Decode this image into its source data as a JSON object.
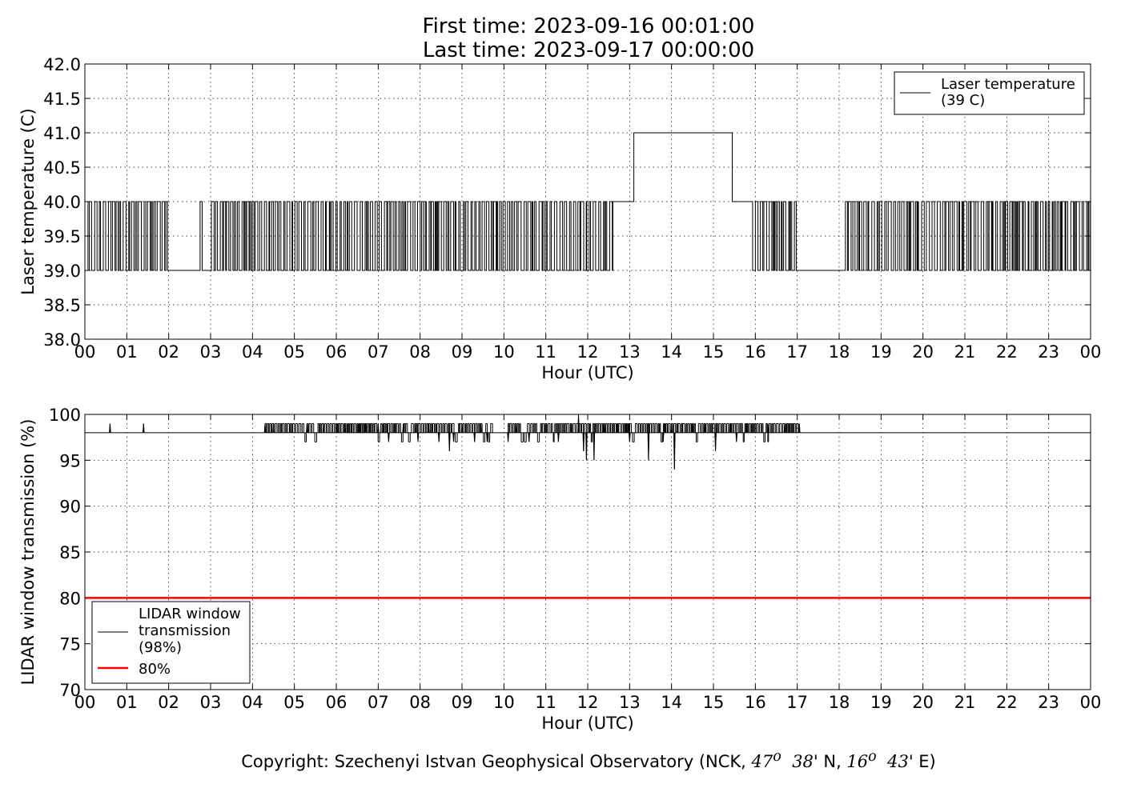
{
  "figure": {
    "title_line1": "First time: 2023-09-16 00:01:00",
    "title_line2": "Last time: 2023-09-17 00:00:00",
    "copyright_prefix": "Copyright: Szechenyi Istvan Geophysical Observatory (NCK, ",
    "copyright_lat_deg": "47",
    "copyright_lat_sup": "o",
    "copyright_lat_min": "38",
    "copyright_lat_suffix": "' N, ",
    "copyright_lon_deg": "16",
    "copyright_lon_sup": "o",
    "copyright_lon_min": "43",
    "copyright_lon_suffix": "' E)"
  },
  "chart_data": [
    {
      "type": "line",
      "title": "",
      "xlabel": "Hour (UTC)",
      "ylabel": "Laser temperature (C)",
      "xlim": [
        0,
        24
      ],
      "ylim": [
        38.0,
        42.0
      ],
      "xticks": [
        0,
        1,
        2,
        3,
        4,
        5,
        6,
        7,
        8,
        9,
        10,
        11,
        12,
        13,
        14,
        15,
        16,
        17,
        18,
        19,
        20,
        21,
        22,
        23,
        24
      ],
      "xticklabels": [
        "00",
        "01",
        "02",
        "03",
        "04",
        "05",
        "06",
        "07",
        "08",
        "09",
        "10",
        "11",
        "12",
        "13",
        "14",
        "15",
        "16",
        "17",
        "18",
        "19",
        "20",
        "21",
        "22",
        "23",
        "00"
      ],
      "yticks": [
        38.0,
        38.5,
        39.0,
        39.5,
        40.0,
        40.5,
        41.0,
        41.5,
        42.0
      ],
      "yticklabels": [
        "38.0",
        "38.5",
        "39.0",
        "39.5",
        "40.0",
        "40.5",
        "41.0",
        "41.5",
        "42.0"
      ],
      "grid": true,
      "legend_position": "top-right",
      "series": [
        {
          "name": "Laser temperature\n(39 C)",
          "color": "#000000",
          "segments": [
            {
              "x_start": 0.02,
              "x_end": 2.0,
              "pattern": "toggle",
              "values": [
                39.0,
                40.0
              ]
            },
            {
              "x_start": 2.0,
              "x_end": 2.75,
              "pattern": "flat",
              "value": 39.0
            },
            {
              "x_start": 2.75,
              "x_end": 2.8,
              "pattern": "spike",
              "values": [
                39.0,
                40.0
              ]
            },
            {
              "x_start": 2.8,
              "x_end": 3.02,
              "pattern": "flat",
              "value": 39.0
            },
            {
              "x_start": 3.02,
              "x_end": 12.6,
              "pattern": "toggle",
              "values": [
                39.0,
                40.0
              ]
            },
            {
              "x_start": 12.6,
              "x_end": 13.1,
              "pattern": "flat",
              "value": 40.0
            },
            {
              "x_start": 13.1,
              "x_end": 15.45,
              "pattern": "flat",
              "value": 41.0
            },
            {
              "x_start": 15.45,
              "x_end": 15.9,
              "pattern": "flat",
              "value": 40.0
            },
            {
              "x_start": 15.9,
              "x_end": 17.0,
              "pattern": "toggle",
              "values": [
                39.0,
                40.0
              ]
            },
            {
              "x_start": 17.0,
              "x_end": 18.15,
              "pattern": "flat",
              "value": 39.0
            },
            {
              "x_start": 18.15,
              "x_end": 24.0,
              "pattern": "toggle",
              "values": [
                39.0,
                40.0
              ]
            }
          ]
        }
      ]
    },
    {
      "type": "line",
      "title": "",
      "xlabel": "Hour (UTC)",
      "ylabel": "LIDAR window transmission (%)",
      "xlim": [
        0,
        24
      ],
      "ylim": [
        70,
        100
      ],
      "xticks": [
        0,
        1,
        2,
        3,
        4,
        5,
        6,
        7,
        8,
        9,
        10,
        11,
        12,
        13,
        14,
        15,
        16,
        17,
        18,
        19,
        20,
        21,
        22,
        23,
        24
      ],
      "xticklabels": [
        "00",
        "01",
        "02",
        "03",
        "04",
        "05",
        "06",
        "07",
        "08",
        "09",
        "10",
        "11",
        "12",
        "13",
        "14",
        "15",
        "16",
        "17",
        "18",
        "19",
        "20",
        "21",
        "22",
        "23",
        "00"
      ],
      "yticks": [
        70,
        75,
        80,
        85,
        90,
        95,
        100
      ],
      "yticklabels": [
        "70",
        "75",
        "80",
        "85",
        "90",
        "95",
        "100"
      ],
      "grid": true,
      "legend_position": "lower-left",
      "series": [
        {
          "name": "LIDAR window\ntransmission\n(98%)",
          "color": "#000000",
          "baseline": 98,
          "spikes": [
            {
              "x": 0.6,
              "value": 99
            },
            {
              "x": 1.4,
              "value": 99
            },
            {
              "x": 4.3,
              "value": 99
            },
            {
              "x": 4.5,
              "value": 99
            },
            {
              "x": 4.9,
              "value": 99
            },
            {
              "x": 5.3,
              "value": 99
            },
            {
              "x": 5.7,
              "value": 99
            },
            {
              "x": 6.2,
              "value": 99
            },
            {
              "x": 6.7,
              "value": 99
            },
            {
              "x": 7.0,
              "value": 99
            },
            {
              "x": 7.25,
              "value": 97
            },
            {
              "x": 7.6,
              "value": 99
            },
            {
              "x": 7.9,
              "value": 99
            },
            {
              "x": 7.95,
              "value": 97
            },
            {
              "x": 8.2,
              "value": 99
            },
            {
              "x": 8.45,
              "value": 97
            },
            {
              "x": 8.7,
              "value": 96
            },
            {
              "x": 8.8,
              "value": 97
            },
            {
              "x": 9.0,
              "value": 99
            },
            {
              "x": 9.3,
              "value": 97
            },
            {
              "x": 9.45,
              "value": 99
            },
            {
              "x": 9.6,
              "value": 97
            },
            {
              "x": 10.1,
              "value": 97
            },
            {
              "x": 10.3,
              "value": 99
            },
            {
              "x": 10.6,
              "value": 97
            },
            {
              "x": 11.0,
              "value": 99
            },
            {
              "x": 11.3,
              "value": 97
            },
            {
              "x": 11.6,
              "value": 99
            },
            {
              "x": 11.78,
              "value": 100
            },
            {
              "x": 11.9,
              "value": 96
            },
            {
              "x": 11.97,
              "value": 95
            },
            {
              "x": 12.15,
              "value": 95
            },
            {
              "x": 12.4,
              "value": 99
            },
            {
              "x": 12.7,
              "value": 99
            },
            {
              "x": 13.0,
              "value": 97
            },
            {
              "x": 13.45,
              "value": 95
            },
            {
              "x": 13.8,
              "value": 97
            },
            {
              "x": 14.0,
              "value": 99
            },
            {
              "x": 14.07,
              "value": 94
            },
            {
              "x": 14.5,
              "value": 99
            },
            {
              "x": 14.8,
              "value": 99
            },
            {
              "x": 15.05,
              "value": 96
            },
            {
              "x": 15.4,
              "value": 99
            },
            {
              "x": 15.55,
              "value": 97
            },
            {
              "x": 15.8,
              "value": 99
            },
            {
              "x": 16.3,
              "value": 99
            },
            {
              "x": 16.7,
              "value": 99
            },
            {
              "x": 17.05,
              "value": 99
            }
          ]
        },
        {
          "name": "80%",
          "color": "#ff0000",
          "value": 80
        }
      ]
    }
  ]
}
